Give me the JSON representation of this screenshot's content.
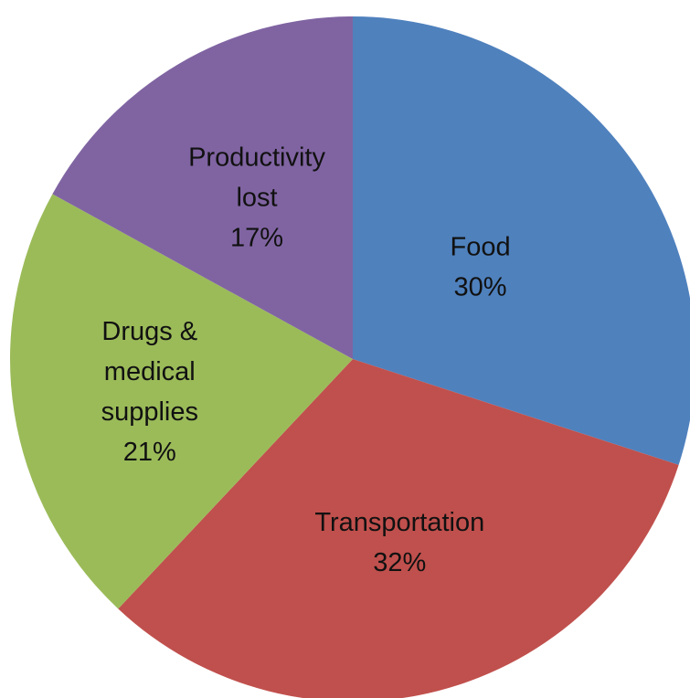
{
  "chart_data": {
    "type": "pie",
    "title": "",
    "start_angle_deg": 0,
    "direction": "clockwise",
    "legend": "none",
    "slices": [
      {
        "label_lines": [
          "Food"
        ],
        "value_label": "30%",
        "value": 30,
        "color": "#4f81bd"
      },
      {
        "label_lines": [
          "Transportation"
        ],
        "value_label": "32%",
        "value": 32,
        "color": "#c0504d"
      },
      {
        "label_lines": [
          "Drugs &",
          "medical",
          "supplies"
        ],
        "value_label": "21%",
        "value": 21,
        "color": "#9bbb59"
      },
      {
        "label_lines": [
          "Productivity",
          "lost"
        ],
        "value_label": "17%",
        "value": 17,
        "color": "#8064a2"
      }
    ]
  }
}
